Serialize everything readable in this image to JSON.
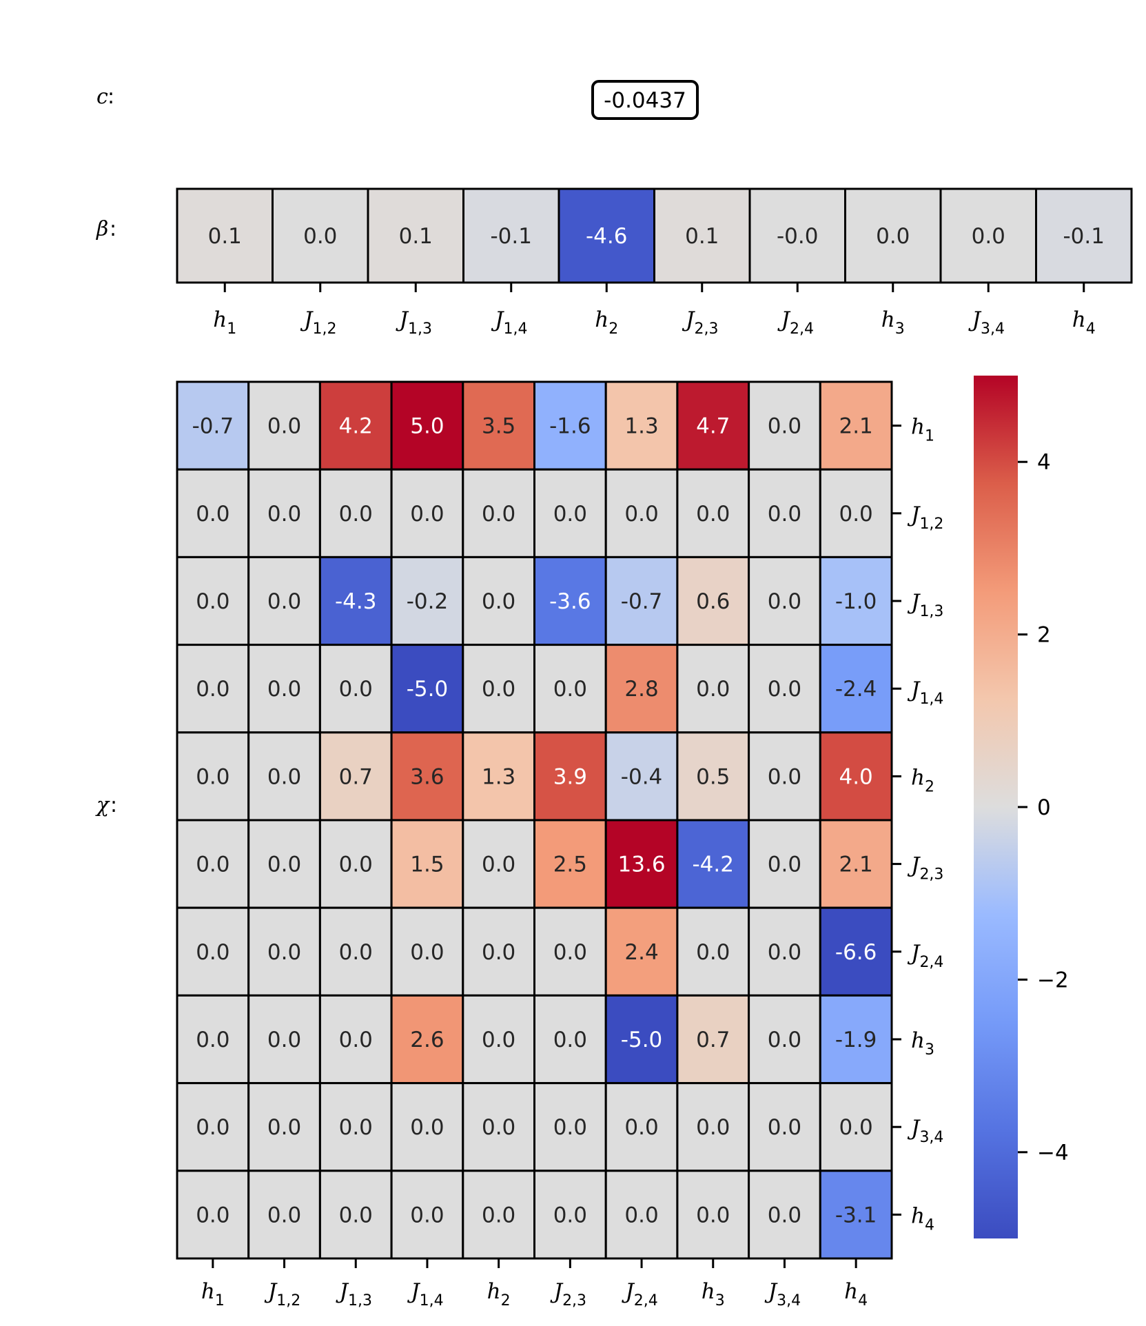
{
  "labels": {
    "c": "c",
    "beta": "β",
    "chi": "χ",
    "colon": ":"
  },
  "c_value": "-0.0437",
  "chart_data": [
    {
      "type": "heatmap",
      "name": "beta",
      "title": "β",
      "columns": [
        "h_1",
        "J_{1,2}",
        "J_{1,3}",
        "J_{1,4}",
        "h_2",
        "J_{2,3}",
        "J_{2,4}",
        "h_3",
        "J_{3,4}",
        "h_4"
      ],
      "values": [
        0.1,
        0.0,
        0.1,
        -0.1,
        -4.6,
        0.1,
        -0.0,
        0.0,
        0.0,
        -0.1
      ],
      "cell_labels": [
        "0.1",
        "0.0",
        "0.1",
        "-0.1",
        "-4.6",
        "0.1",
        "-0.0",
        "0.0",
        "0.0",
        "-0.1"
      ],
      "colormap": "coolwarm",
      "vmin": -5.0,
      "vmax": 5.0
    },
    {
      "type": "heatmap",
      "name": "chi",
      "title": "χ",
      "columns": [
        "h_1",
        "J_{1,2}",
        "J_{1,3}",
        "J_{1,4}",
        "h_2",
        "J_{2,3}",
        "J_{2,4}",
        "h_3",
        "J_{3,4}",
        "h_4"
      ],
      "rows": [
        "h_1",
        "J_{1,2}",
        "J_{1,3}",
        "J_{1,4}",
        "h_2",
        "J_{2,3}",
        "J_{2,4}",
        "h_3",
        "J_{3,4}",
        "h_4"
      ],
      "values": [
        [
          -0.7,
          0.0,
          4.2,
          5.0,
          3.5,
          -1.6,
          1.3,
          4.7,
          0.0,
          2.1
        ],
        [
          0.0,
          0.0,
          0.0,
          0.0,
          0.0,
          0.0,
          0.0,
          0.0,
          0.0,
          0.0
        ],
        [
          0.0,
          0.0,
          -4.3,
          -0.2,
          0.0,
          -3.6,
          -0.7,
          0.6,
          0.0,
          -1.0
        ],
        [
          0.0,
          0.0,
          0.0,
          -5.0,
          0.0,
          0.0,
          2.8,
          0.0,
          0.0,
          -2.4
        ],
        [
          0.0,
          0.0,
          0.7,
          3.6,
          1.3,
          3.9,
          -0.4,
          0.5,
          0.0,
          4.0
        ],
        [
          0.0,
          0.0,
          0.0,
          1.5,
          0.0,
          2.5,
          13.6,
          -4.2,
          0.0,
          2.1
        ],
        [
          0.0,
          0.0,
          0.0,
          0.0,
          0.0,
          0.0,
          2.4,
          0.0,
          0.0,
          -6.6
        ],
        [
          0.0,
          0.0,
          0.0,
          2.6,
          0.0,
          0.0,
          -5.0,
          0.7,
          0.0,
          -1.9
        ],
        [
          0.0,
          0.0,
          0.0,
          0.0,
          0.0,
          0.0,
          0.0,
          0.0,
          0.0,
          0.0
        ],
        [
          0.0,
          0.0,
          0.0,
          0.0,
          0.0,
          0.0,
          0.0,
          0.0,
          0.0,
          -3.1
        ]
      ],
      "colormap": "coolwarm",
      "vmin": -5.0,
      "vmax": 5.0
    }
  ],
  "colorbar": {
    "ticks": [
      4,
      2,
      0,
      -2,
      -4
    ],
    "tick_labels": [
      "4",
      "2",
      "0",
      "−2",
      "−4"
    ],
    "vmin": -5.0,
    "vmax": 5.0
  }
}
